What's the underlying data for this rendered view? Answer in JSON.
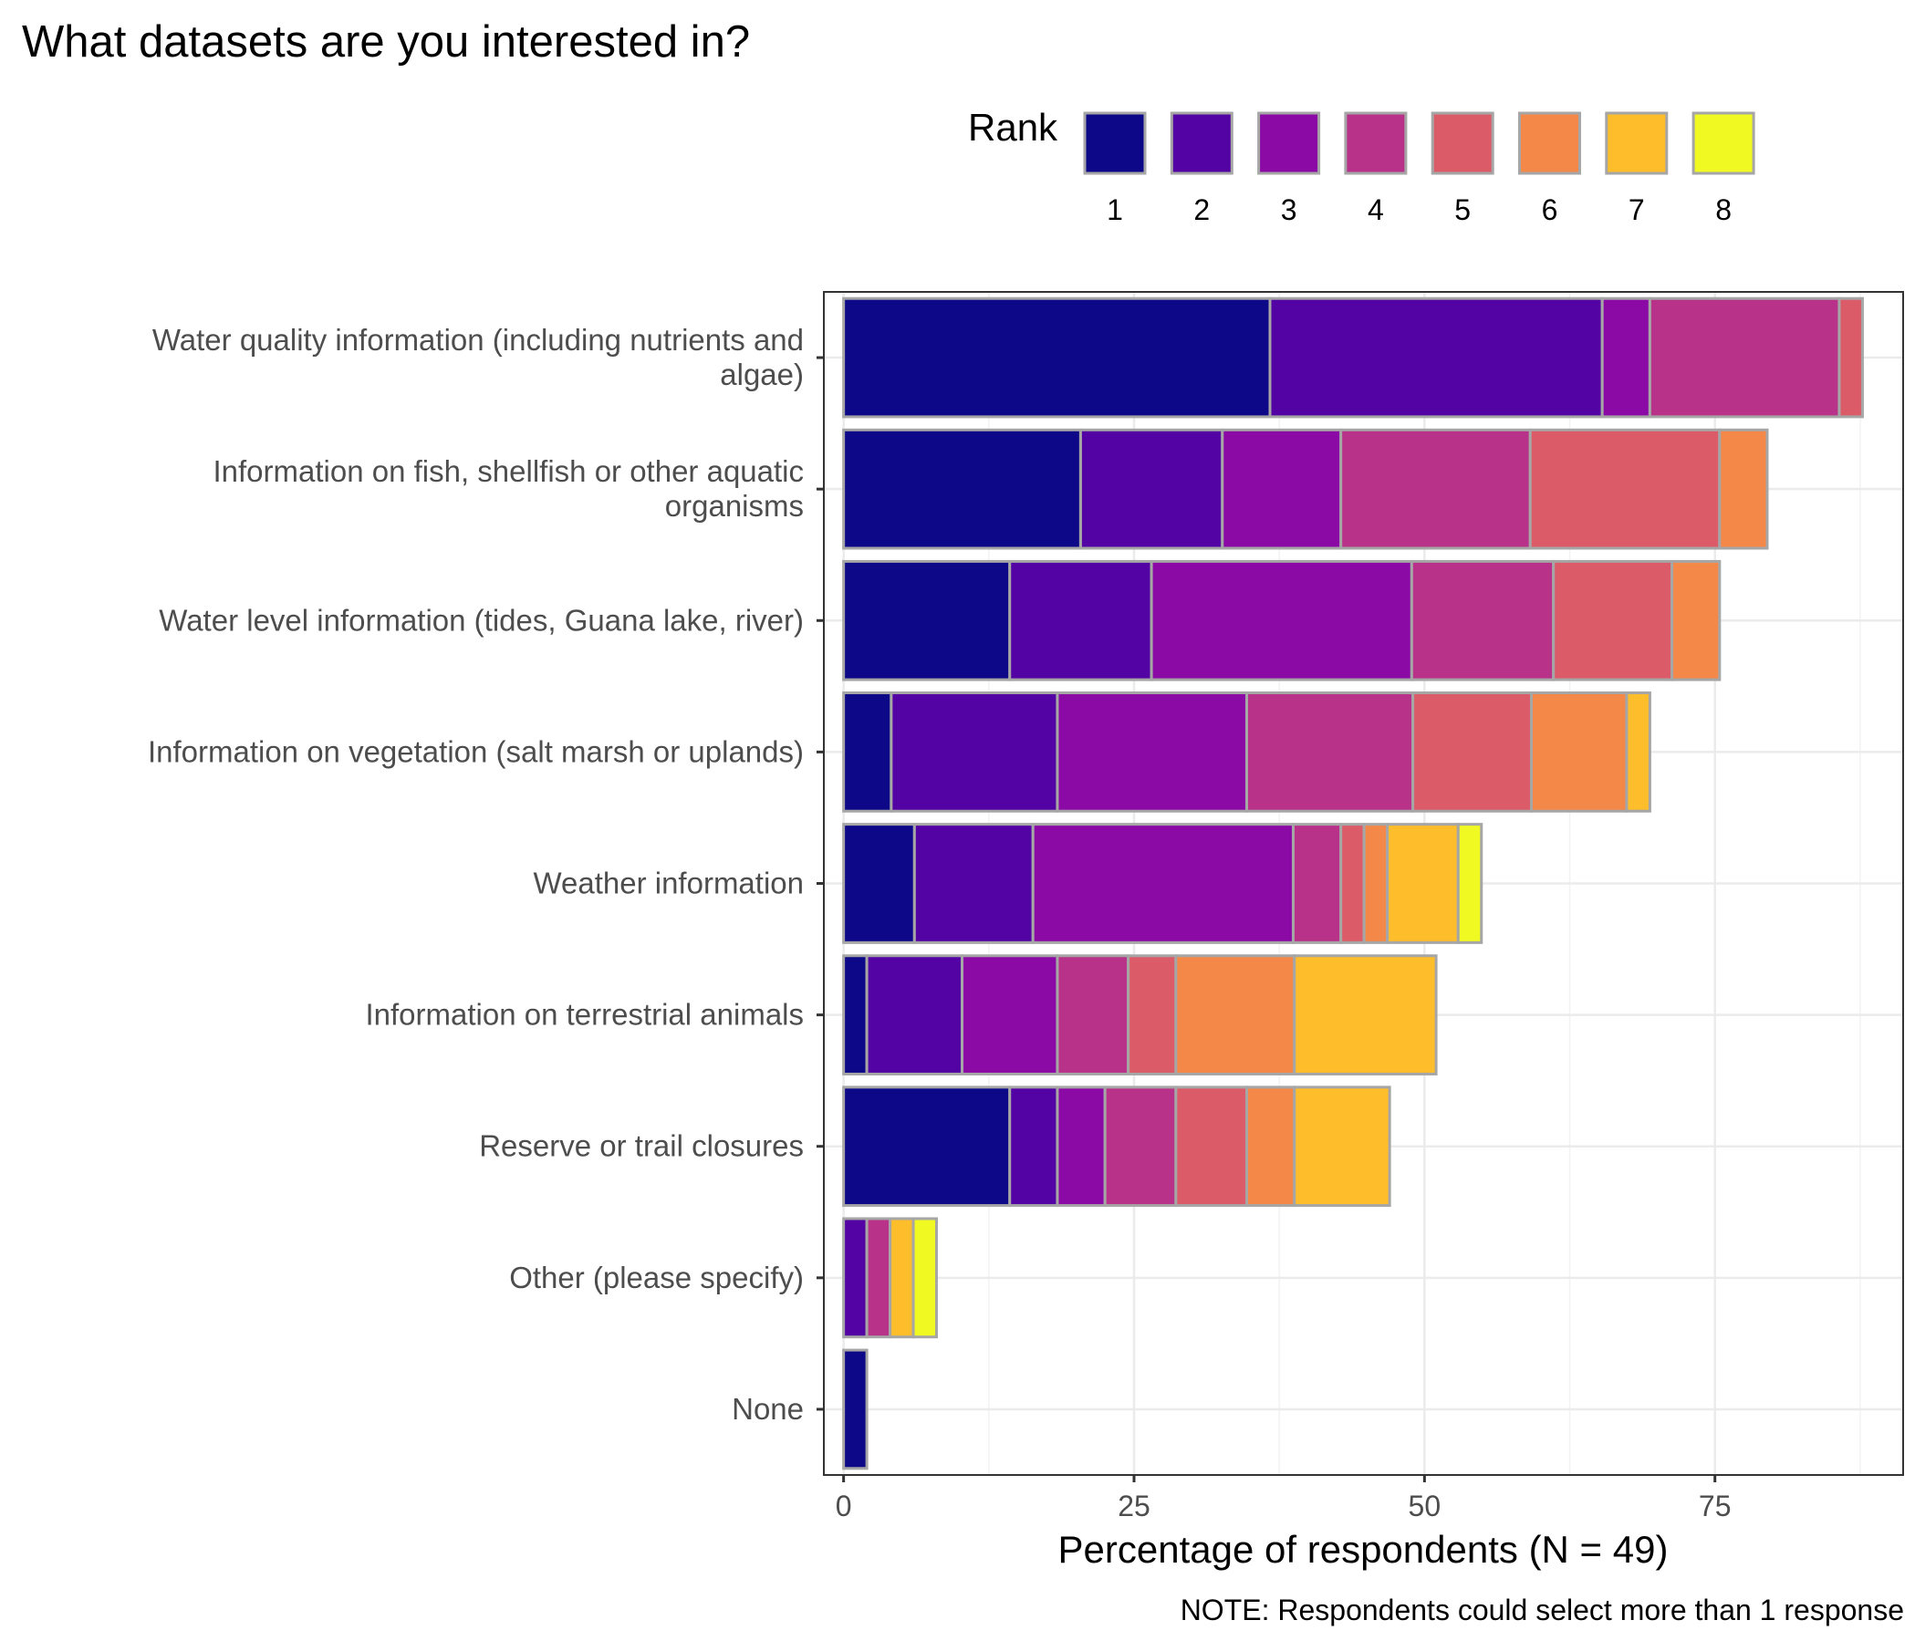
{
  "chart_data": {
    "type": "bar",
    "orientation": "horizontal",
    "stacked": true,
    "title": "What datasets are you interested in?",
    "xlabel": "Percentage of respondents (N = 49)",
    "caption": "NOTE: Respondents could select more than 1 response",
    "xlim": [
      -1.7,
      91.2
    ],
    "xticks": [
      0,
      25,
      50,
      75
    ],
    "grid": true,
    "legend": {
      "title": "Rank",
      "position": "top"
    },
    "categories": [
      [
        "Water quality information (including nutrients and",
        "algae)"
      ],
      [
        "Information on fish, shellfish or other aquatic",
        "organisms"
      ],
      [
        "Water level information (tides, Guana lake, river)"
      ],
      [
        "Information on vegetation (salt marsh or uplands)"
      ],
      [
        "Weather information"
      ],
      [
        "Information on terrestrial animals"
      ],
      [
        "Reserve or trail closures"
      ],
      [
        "Other (please specify)"
      ],
      [
        "None"
      ]
    ],
    "series": [
      {
        "name": "1",
        "color": "#0d0887",
        "values": [
          36.7,
          20.4,
          14.3,
          4.1,
          6.1,
          2.0,
          14.3,
          0.0,
          2.0
        ]
      },
      {
        "name": "2",
        "color": "#5302a3",
        "values": [
          28.6,
          12.2,
          12.2,
          14.3,
          10.2,
          8.2,
          4.1,
          2.0,
          0.0
        ]
      },
      {
        "name": "3",
        "color": "#8b0aa5",
        "values": [
          4.1,
          10.2,
          22.4,
          16.3,
          22.4,
          8.2,
          4.1,
          0.0,
          0.0
        ]
      },
      {
        "name": "4",
        "color": "#b83289",
        "values": [
          16.3,
          16.3,
          12.2,
          14.3,
          4.1,
          6.1,
          6.1,
          2.0,
          0.0
        ]
      },
      {
        "name": "5",
        "color": "#db5c68",
        "values": [
          2.0,
          16.3,
          10.2,
          10.2,
          2.0,
          4.1,
          6.1,
          0.0,
          0.0
        ]
      },
      {
        "name": "6",
        "color": "#f48849",
        "values": [
          0.0,
          4.1,
          4.1,
          8.2,
          2.0,
          10.2,
          4.1,
          0.0,
          0.0
        ]
      },
      {
        "name": "7",
        "color": "#febd2a",
        "values": [
          0.0,
          0.0,
          0.0,
          2.0,
          6.1,
          12.2,
          8.2,
          2.0,
          0.0
        ]
      },
      {
        "name": "8",
        "color": "#f0f921",
        "values": [
          0.0,
          0.0,
          0.0,
          0.0,
          2.0,
          0.0,
          0.0,
          2.0,
          0.0
        ]
      }
    ]
  }
}
